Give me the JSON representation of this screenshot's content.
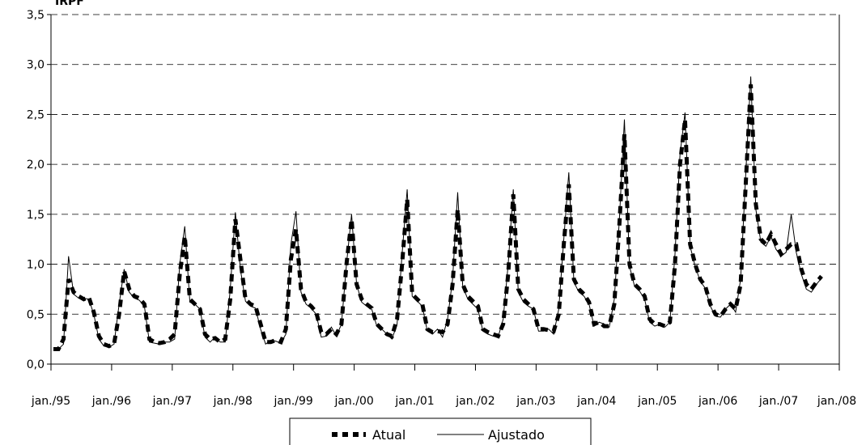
{
  "chart_data": {
    "type": "line",
    "ylabel": "IRPF",
    "ylim": [
      0,
      3.5
    ],
    "yticks": [
      "0,0",
      "0,5",
      "1,0",
      "1,5",
      "2,0",
      "2,5",
      "3,0",
      "3,5"
    ],
    "xticks": [
      "jan./95",
      "jan./96",
      "jan./97",
      "jan./98",
      "jan./99",
      "jan./00",
      "jan./01",
      "jan./02",
      "jan./03",
      "jan./04",
      "jan./05",
      "jan./06",
      "jan./07",
      "jan./08"
    ],
    "grid": "horizontal dashed",
    "legend_position": "bottom-center",
    "series": [
      {
        "name": "Atual",
        "style": "dashed-thick",
        "color": "#000000",
        "values": [
          0.15,
          0.15,
          0.25,
          0.85,
          0.72,
          0.68,
          0.65,
          0.67,
          0.52,
          0.28,
          0.2,
          0.18,
          0.2,
          0.5,
          0.93,
          0.75,
          0.68,
          0.66,
          0.6,
          0.25,
          0.22,
          0.21,
          0.22,
          0.25,
          0.3,
          0.9,
          1.28,
          0.65,
          0.6,
          0.55,
          0.3,
          0.25,
          0.26,
          0.22,
          0.25,
          0.65,
          1.45,
          1.05,
          0.65,
          0.6,
          0.58,
          0.4,
          0.22,
          0.22,
          0.24,
          0.22,
          0.35,
          1.05,
          1.35,
          0.75,
          0.62,
          0.58,
          0.52,
          0.32,
          0.3,
          0.35,
          0.3,
          0.4,
          1.0,
          1.45,
          0.8,
          0.65,
          0.6,
          0.56,
          0.4,
          0.35,
          0.3,
          0.28,
          0.45,
          1.0,
          1.65,
          0.7,
          0.65,
          0.6,
          0.35,
          0.32,
          0.33,
          0.32,
          0.4,
          0.8,
          1.55,
          0.8,
          0.68,
          0.63,
          0.58,
          0.35,
          0.32,
          0.3,
          0.28,
          0.4,
          0.9,
          1.7,
          0.75,
          0.65,
          0.6,
          0.55,
          0.35,
          0.35,
          0.34,
          0.33,
          0.5,
          1.2,
          1.8,
          0.85,
          0.75,
          0.7,
          0.62,
          0.4,
          0.42,
          0.38,
          0.38,
          0.6,
          1.4,
          2.3,
          1.0,
          0.8,
          0.75,
          0.68,
          0.45,
          0.4,
          0.4,
          0.38,
          0.42,
          1.0,
          2.0,
          2.45,
          1.2,
          1.0,
          0.85,
          0.78,
          0.6,
          0.5,
          0.48,
          0.55,
          0.6,
          0.55,
          0.8,
          1.8,
          2.8,
          1.6,
          1.25,
          1.2,
          1.3,
          1.2,
          1.1,
          1.15,
          1.2,
          1.2,
          0.95,
          0.8,
          0.75,
          0.82,
          0.88
        ]
      },
      {
        "name": "Ajustado",
        "style": "solid-thin",
        "color": "#000000",
        "values": [
          0.15,
          0.15,
          0.2,
          1.08,
          0.7,
          0.66,
          0.66,
          0.65,
          0.5,
          0.25,
          0.18,
          0.17,
          0.2,
          0.6,
          0.95,
          0.72,
          0.66,
          0.64,
          0.58,
          0.22,
          0.21,
          0.2,
          0.22,
          0.22,
          0.25,
          1.0,
          1.38,
          0.62,
          0.6,
          0.55,
          0.27,
          0.22,
          0.27,
          0.22,
          0.22,
          0.75,
          1.52,
          0.95,
          0.63,
          0.58,
          0.56,
          0.35,
          0.2,
          0.24,
          0.23,
          0.21,
          0.3,
          1.2,
          1.53,
          0.72,
          0.6,
          0.56,
          0.5,
          0.27,
          0.28,
          0.37,
          0.28,
          0.4,
          1.0,
          1.5,
          0.8,
          0.62,
          0.58,
          0.55,
          0.38,
          0.35,
          0.3,
          0.25,
          0.4,
          1.1,
          1.75,
          0.68,
          0.63,
          0.58,
          0.33,
          0.3,
          0.35,
          0.27,
          0.45,
          0.85,
          1.72,
          0.78,
          0.65,
          0.6,
          0.55,
          0.33,
          0.3,
          0.28,
          0.27,
          0.45,
          1.0,
          1.75,
          0.72,
          0.62,
          0.58,
          0.55,
          0.33,
          0.33,
          0.35,
          0.3,
          0.55,
          1.25,
          1.92,
          0.82,
          0.72,
          0.68,
          0.6,
          0.38,
          0.42,
          0.4,
          0.37,
          0.65,
          1.45,
          2.45,
          0.98,
          0.78,
          0.73,
          0.65,
          0.42,
          0.38,
          0.4,
          0.37,
          0.42,
          1.1,
          2.1,
          2.52,
          1.18,
          0.98,
          0.83,
          0.76,
          0.58,
          0.48,
          0.47,
          0.55,
          0.6,
          0.52,
          0.85,
          1.9,
          2.88,
          1.55,
          1.22,
          1.18,
          1.28,
          1.15,
          1.08,
          1.12,
          1.5,
          1.12,
          0.9,
          0.75,
          0.72,
          0.8,
          0.86
        ]
      }
    ]
  }
}
